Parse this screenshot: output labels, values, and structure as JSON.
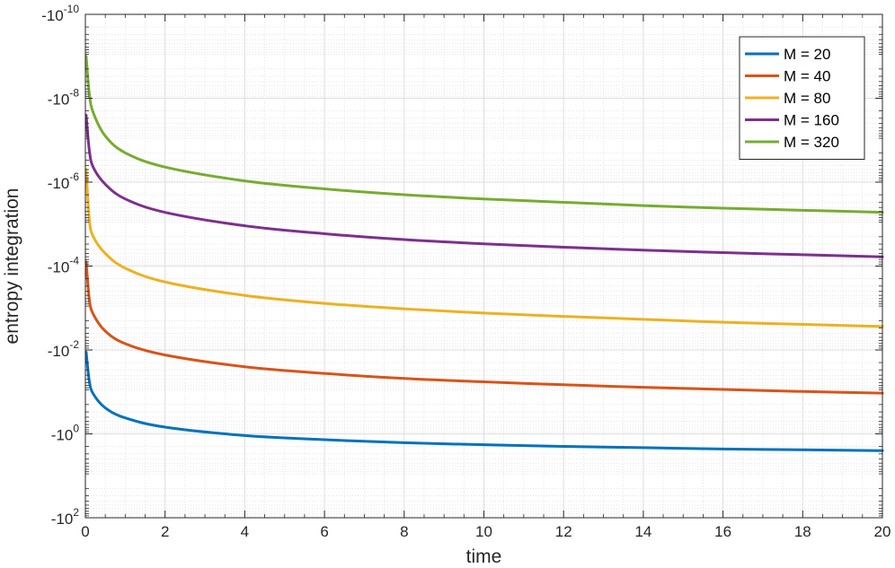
{
  "chart_data": {
    "type": "line",
    "title": "",
    "xlabel": "time",
    "ylabel": "entropy integration",
    "xlim": [
      0,
      20
    ],
    "ylim_exponent": [
      -10,
      2
    ],
    "yscale": "symlog-negative (log of magnitude, values are negative)",
    "grid": true,
    "minor_grid": true,
    "legend_position": "top-right",
    "x_ticks": [
      "0",
      "2",
      "4",
      "6",
      "8",
      "10",
      "12",
      "14",
      "16",
      "18",
      "20"
    ],
    "y_ticks": [
      {
        "mantissa": "-10",
        "exp": "-10"
      },
      {
        "mantissa": "-10",
        "exp": "-8"
      },
      {
        "mantissa": "-10",
        "exp": "-6"
      },
      {
        "mantissa": "-10",
        "exp": "-4"
      },
      {
        "mantissa": "-10",
        "exp": "-2"
      },
      {
        "mantissa": "-10",
        "exp": "0"
      },
      {
        "mantissa": "-10",
        "exp": "2"
      }
    ],
    "x": [
      0.02,
      0.1,
      0.2,
      0.5,
      1,
      2,
      4,
      6,
      8,
      10,
      12,
      14,
      16,
      18,
      20
    ],
    "series": [
      {
        "name": "M = 20",
        "color": "#0072BD",
        "log10_magnitude": [
          -1.95,
          -1.25,
          -0.95,
          -0.62,
          -0.38,
          -0.16,
          0.04,
          0.14,
          0.21,
          0.26,
          0.3,
          0.33,
          0.36,
          0.38,
          0.4
        ]
      },
      {
        "name": "M = 40",
        "color": "#D95319",
        "log10_magnitude": [
          -4.1,
          -3.2,
          -2.85,
          -2.45,
          -2.15,
          -1.88,
          -1.6,
          -1.44,
          -1.32,
          -1.24,
          -1.17,
          -1.11,
          -1.06,
          -1.01,
          -0.97
        ]
      },
      {
        "name": "M = 80",
        "color": "#EDB120",
        "log10_magnitude": [
          -6.3,
          -5.1,
          -4.7,
          -4.3,
          -3.95,
          -3.62,
          -3.3,
          -3.11,
          -2.98,
          -2.88,
          -2.8,
          -2.73,
          -2.66,
          -2.61,
          -2.56
        ]
      },
      {
        "name": "M = 160",
        "color": "#7E2F8E",
        "log10_magnitude": [
          -7.6,
          -6.75,
          -6.35,
          -5.95,
          -5.6,
          -5.28,
          -4.96,
          -4.77,
          -4.63,
          -4.53,
          -4.45,
          -4.38,
          -4.32,
          -4.27,
          -4.22
        ]
      },
      {
        "name": "M = 320",
        "color": "#77AC30",
        "log10_magnitude": [
          -9.0,
          -8.1,
          -7.65,
          -7.1,
          -6.7,
          -6.36,
          -6.03,
          -5.84,
          -5.7,
          -5.6,
          -5.52,
          -5.44,
          -5.38,
          -5.33,
          -5.28
        ]
      }
    ]
  }
}
